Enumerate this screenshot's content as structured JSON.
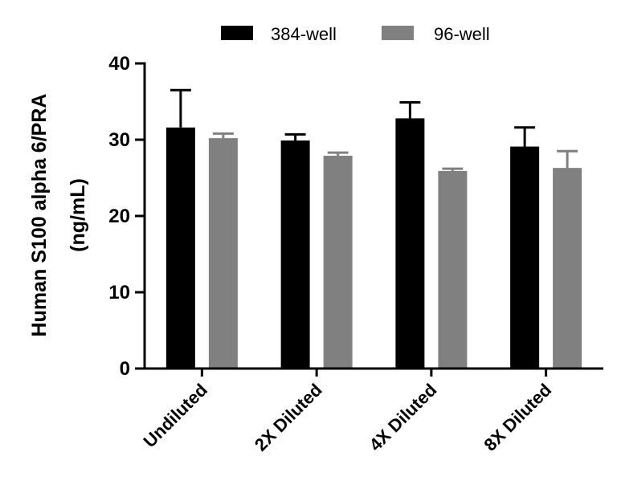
{
  "chart_data": {
    "type": "bar",
    "categories": [
      "Undiluted",
      "2X Diluted",
      "4X Diluted",
      "8X Diluted"
    ],
    "series": [
      {
        "name": "384-well",
        "color": "#000000",
        "values": [
          31.6,
          29.9,
          32.8,
          29.1
        ],
        "errors": [
          4.9,
          0.8,
          2.1,
          2.5
        ]
      },
      {
        "name": "96-well",
        "color": "#808080",
        "values": [
          30.2,
          27.9,
          25.9,
          26.3
        ],
        "errors": [
          0.6,
          0.4,
          0.3,
          2.2
        ]
      }
    ],
    "ylabel_lines": [
      "Human S100 alpha 6/PRA",
      "(ng/mL)"
    ],
    "xlabel": "",
    "ylim": [
      0,
      40
    ],
    "yticks": [
      0,
      10,
      20,
      30,
      40
    ],
    "legend_position": "top-center",
    "grid": false
  }
}
